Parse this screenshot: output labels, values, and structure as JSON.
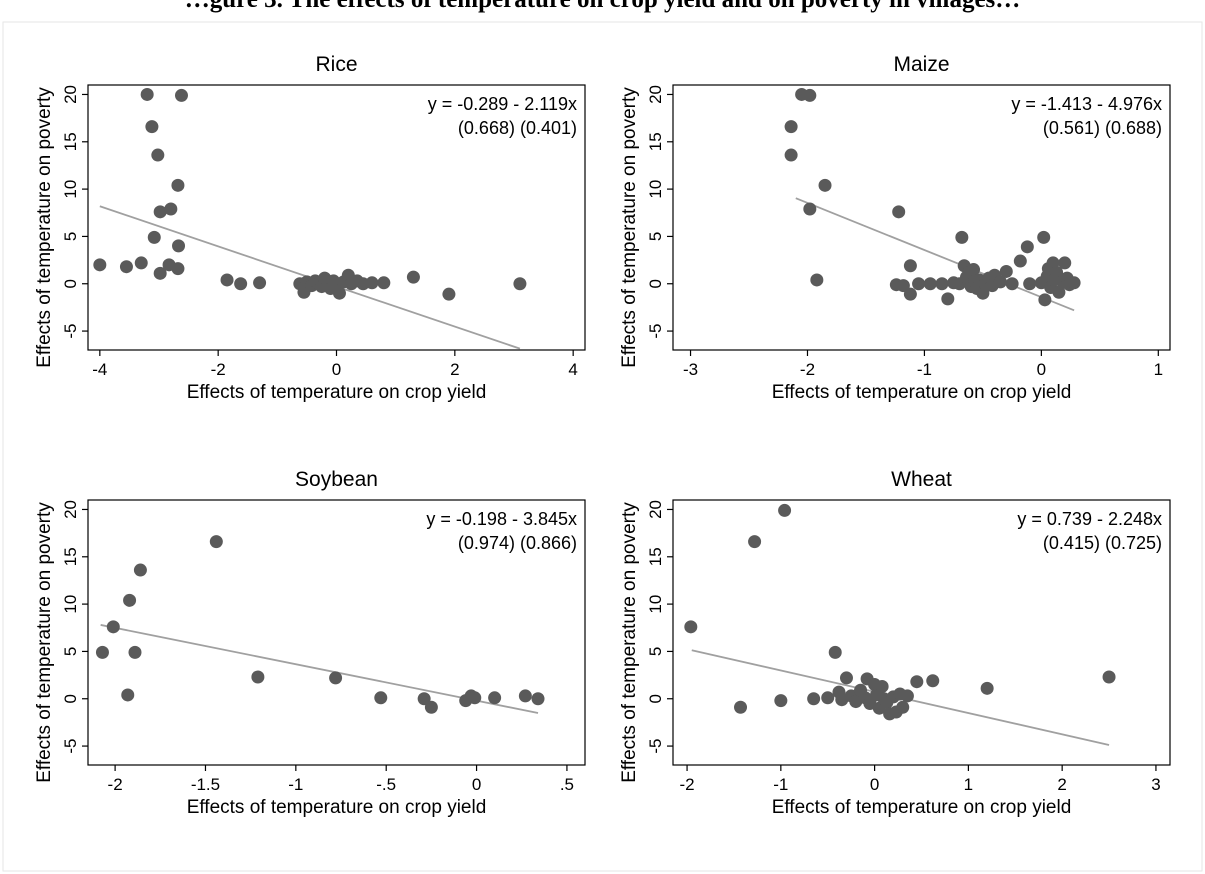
{
  "page": {
    "title": "…gure 3. The effects of temperature on crop yield and on poverty in villages…"
  },
  "colors": {
    "point": "#5a5a5a",
    "fit_line": "#a0a0a0",
    "axis": "#000000",
    "background": "#ffffff"
  },
  "chart_data": [
    {
      "type": "scatter",
      "title": "Rice",
      "xlabel": "Effects of temperature on crop yield",
      "ylabel": "Effects of temperature on poverty",
      "xlim": [
        -4.2,
        4.2
      ],
      "ylim": [
        -7,
        21
      ],
      "xticks": [
        -4,
        -2,
        0,
        2,
        4
      ],
      "xtick_labels": [
        "-4",
        "-2",
        "0",
        "2",
        "4"
      ],
      "yticks": [
        -5,
        0,
        5,
        10,
        15,
        20
      ],
      "ytick_labels": [
        "-5",
        "0",
        "5",
        "10",
        "15",
        "20"
      ],
      "equation": "y = -0.289 - 2.119x",
      "std_errors": "(0.668) (0.401)",
      "fit": {
        "intercept": -0.289,
        "slope": -2.119,
        "x_range": [
          -4.0,
          3.1
        ]
      },
      "points": [
        {
          "x": -4.0,
          "y": 2.0
        },
        {
          "x": -3.55,
          "y": 1.8
        },
        {
          "x": -3.3,
          "y": 2.2
        },
        {
          "x": -3.2,
          "y": 20.0
        },
        {
          "x": -3.12,
          "y": 16.6
        },
        {
          "x": -3.08,
          "y": 4.9
        },
        {
          "x": -3.02,
          "y": 13.6
        },
        {
          "x": -2.98,
          "y": 7.6
        },
        {
          "x": -2.98,
          "y": 1.1
        },
        {
          "x": -2.83,
          "y": 2.0
        },
        {
          "x": -2.8,
          "y": 7.9
        },
        {
          "x": -2.68,
          "y": 10.4
        },
        {
          "x": -2.67,
          "y": 4.0
        },
        {
          "x": -2.62,
          "y": 19.9
        },
        {
          "x": -2.68,
          "y": 1.6
        },
        {
          "x": -1.85,
          "y": 0.4
        },
        {
          "x": -1.62,
          "y": 0.0
        },
        {
          "x": -1.3,
          "y": 0.1
        },
        {
          "x": -0.62,
          "y": 0.0
        },
        {
          "x": -0.55,
          "y": -0.9
        },
        {
          "x": -0.5,
          "y": 0.2
        },
        {
          "x": -0.42,
          "y": -0.2
        },
        {
          "x": -0.36,
          "y": 0.3
        },
        {
          "x": -0.3,
          "y": 0.0
        },
        {
          "x": -0.25,
          "y": -0.3
        },
        {
          "x": -0.2,
          "y": 0.6
        },
        {
          "x": -0.15,
          "y": 0.2
        },
        {
          "x": -0.1,
          "y": -0.5
        },
        {
          "x": -0.05,
          "y": 0.3
        },
        {
          "x": 0.0,
          "y": -0.1
        },
        {
          "x": 0.05,
          "y": -1.0
        },
        {
          "x": 0.12,
          "y": 0.2
        },
        {
          "x": 0.2,
          "y": 0.9
        },
        {
          "x": 0.25,
          "y": 0.0
        },
        {
          "x": 0.35,
          "y": 0.3
        },
        {
          "x": 0.45,
          "y": 0.0
        },
        {
          "x": 0.6,
          "y": 0.1
        },
        {
          "x": 0.8,
          "y": 0.1
        },
        {
          "x": 1.3,
          "y": 0.7
        },
        {
          "x": 1.9,
          "y": -1.1
        },
        {
          "x": 3.1,
          "y": 0.0
        }
      ]
    },
    {
      "type": "scatter",
      "title": "Maize",
      "xlabel": "Effects of temperature on crop yield",
      "ylabel": "Effects of temperature on poverty",
      "xlim": [
        -3.15,
        1.1
      ],
      "ylim": [
        -7,
        21
      ],
      "xticks": [
        -3,
        -2,
        -1,
        0,
        1
      ],
      "xtick_labels": [
        "-3",
        "-2",
        "-1",
        "0",
        "1"
      ],
      "yticks": [
        -5,
        0,
        5,
        10,
        15,
        20
      ],
      "ytick_labels": [
        "-5",
        "0",
        "5",
        "10",
        "15",
        "20"
      ],
      "equation": "y = -1.413 - 4.976x",
      "std_errors": "(0.561) (0.688)",
      "fit": {
        "intercept": -1.413,
        "slope": -4.976,
        "x_range": [
          -2.1,
          0.28
        ]
      },
      "points": [
        {
          "x": -2.14,
          "y": 16.6
        },
        {
          "x": -2.14,
          "y": 13.6
        },
        {
          "x": -2.05,
          "y": 20.0
        },
        {
          "x": -1.98,
          "y": 19.9
        },
        {
          "x": -1.98,
          "y": 7.9
        },
        {
          "x": -1.92,
          "y": 0.4
        },
        {
          "x": -1.85,
          "y": 10.4
        },
        {
          "x": -1.22,
          "y": 7.6
        },
        {
          "x": -1.24,
          "y": -0.1
        },
        {
          "x": -1.18,
          "y": -0.2
        },
        {
          "x": -1.12,
          "y": 1.9
        },
        {
          "x": -1.12,
          "y": -1.1
        },
        {
          "x": -1.05,
          "y": 0.0
        },
        {
          "x": -0.95,
          "y": 0.0
        },
        {
          "x": -0.85,
          "y": 0.0
        },
        {
          "x": -0.8,
          "y": -1.6
        },
        {
          "x": -0.75,
          "y": 0.1
        },
        {
          "x": -0.7,
          "y": 0.0
        },
        {
          "x": -0.68,
          "y": 4.9
        },
        {
          "x": -0.66,
          "y": 1.9
        },
        {
          "x": -0.64,
          "y": 0.7
        },
        {
          "x": -0.62,
          "y": 1.2
        },
        {
          "x": -0.6,
          "y": -0.3
        },
        {
          "x": -0.58,
          "y": 1.5
        },
        {
          "x": -0.57,
          "y": 0.3
        },
        {
          "x": -0.55,
          "y": -0.5
        },
        {
          "x": -0.53,
          "y": 0.4
        },
        {
          "x": -0.5,
          "y": -1.0
        },
        {
          "x": -0.48,
          "y": 0.0
        },
        {
          "x": -0.45,
          "y": 0.6
        },
        {
          "x": -0.42,
          "y": -0.2
        },
        {
          "x": -0.4,
          "y": 0.9
        },
        {
          "x": -0.35,
          "y": 0.2
        },
        {
          "x": -0.3,
          "y": 1.3
        },
        {
          "x": -0.25,
          "y": 0.0
        },
        {
          "x": -0.18,
          "y": 2.4
        },
        {
          "x": -0.12,
          "y": 3.9
        },
        {
          "x": -0.1,
          "y": 0.0
        },
        {
          "x": 0.0,
          "y": 0.1
        },
        {
          "x": 0.02,
          "y": 4.9
        },
        {
          "x": 0.03,
          "y": -1.7
        },
        {
          "x": 0.05,
          "y": 0.8
        },
        {
          "x": 0.06,
          "y": 1.6
        },
        {
          "x": 0.08,
          "y": -0.4
        },
        {
          "x": 0.1,
          "y": 2.2
        },
        {
          "x": 0.11,
          "y": 0.4
        },
        {
          "x": 0.13,
          "y": 1.2
        },
        {
          "x": 0.15,
          "y": -0.9
        },
        {
          "x": 0.18,
          "y": 0.2
        },
        {
          "x": 0.2,
          "y": 2.2
        },
        {
          "x": 0.22,
          "y": 0.6
        },
        {
          "x": 0.24,
          "y": -0.1
        },
        {
          "x": 0.28,
          "y": 0.1
        }
      ]
    },
    {
      "type": "scatter",
      "title": "Soybean",
      "xlabel": "Effects of temperature on crop yield",
      "ylabel": "Effects of temperature on poverty",
      "xlim": [
        -2.15,
        0.6
      ],
      "ylim": [
        -7,
        21
      ],
      "xticks": [
        -2,
        -1.5,
        -1,
        -0.5,
        0,
        0.5
      ],
      "xtick_labels": [
        "-2",
        "-1.5",
        "-1",
        "-.5",
        "0",
        ".5"
      ],
      "yticks": [
        -5,
        0,
        5,
        10,
        15,
        20
      ],
      "ytick_labels": [
        "-5",
        "0",
        "5",
        "10",
        "15",
        "20"
      ],
      "equation": "y = -0.198 - 3.845x",
      "std_errors": "(0.974) (0.866)",
      "fit": {
        "intercept": -0.198,
        "slope": -3.845,
        "x_range": [
          -2.08,
          0.34
        ]
      },
      "points": [
        {
          "x": -2.07,
          "y": 4.9
        },
        {
          "x": -2.01,
          "y": 7.6
        },
        {
          "x": -1.93,
          "y": 0.4
        },
        {
          "x": -1.92,
          "y": 10.4
        },
        {
          "x": -1.89,
          "y": 4.9
        },
        {
          "x": -1.86,
          "y": 13.6
        },
        {
          "x": -1.44,
          "y": 16.6
        },
        {
          "x": -1.21,
          "y": 2.3
        },
        {
          "x": -0.78,
          "y": 2.2
        },
        {
          "x": -0.53,
          "y": 0.1
        },
        {
          "x": -0.29,
          "y": 0.0
        },
        {
          "x": -0.25,
          "y": -0.9
        },
        {
          "x": -0.06,
          "y": -0.2
        },
        {
          "x": -0.03,
          "y": 0.3
        },
        {
          "x": -0.01,
          "y": 0.1
        },
        {
          "x": 0.1,
          "y": 0.1
        },
        {
          "x": 0.27,
          "y": 0.3
        },
        {
          "x": 0.34,
          "y": 0.0
        }
      ]
    },
    {
      "type": "scatter",
      "title": "Wheat",
      "xlabel": "Effects of temperature on crop yield",
      "ylabel": "Effects of temperature on poverty",
      "xlim": [
        -2.15,
        3.15
      ],
      "ylim": [
        -7,
        21
      ],
      "xticks": [
        -2,
        -1,
        0,
        1,
        2,
        3
      ],
      "xtick_labels": [
        "-2",
        "-1",
        "0",
        "1",
        "2",
        "3"
      ],
      "yticks": [
        -5,
        0,
        5,
        10,
        15,
        20
      ],
      "ytick_labels": [
        "-5",
        "0",
        "5",
        "10",
        "15",
        "20"
      ],
      "equation": "y = 0.739 - 2.248x",
      "std_errors": "(0.415) (0.725)",
      "fit": {
        "intercept": 0.739,
        "slope": -2.248,
        "x_range": [
          -1.95,
          2.5
        ]
      },
      "points": [
        {
          "x": -1.96,
          "y": 7.6
        },
        {
          "x": -1.43,
          "y": -0.9
        },
        {
          "x": -1.28,
          "y": 16.6
        },
        {
          "x": -1.0,
          "y": -0.2
        },
        {
          "x": -0.96,
          "y": 19.9
        },
        {
          "x": -0.65,
          "y": 0.0
        },
        {
          "x": -0.5,
          "y": 0.1
        },
        {
          "x": -0.42,
          "y": 4.9
        },
        {
          "x": -0.38,
          "y": 0.7
        },
        {
          "x": -0.35,
          "y": -0.1
        },
        {
          "x": -0.3,
          "y": 2.2
        },
        {
          "x": -0.25,
          "y": 0.3
        },
        {
          "x": -0.2,
          "y": -0.3
        },
        {
          "x": -0.15,
          "y": 0.9
        },
        {
          "x": -0.1,
          "y": 0.1
        },
        {
          "x": -0.08,
          "y": 2.1
        },
        {
          "x": -0.05,
          "y": -0.5
        },
        {
          "x": 0.0,
          "y": 1.5
        },
        {
          "x": 0.02,
          "y": 0.4
        },
        {
          "x": 0.05,
          "y": -1.0
        },
        {
          "x": 0.08,
          "y": 1.3
        },
        {
          "x": 0.1,
          "y": 0.0
        },
        {
          "x": 0.13,
          "y": -0.4
        },
        {
          "x": 0.16,
          "y": -1.6
        },
        {
          "x": 0.2,
          "y": 0.2
        },
        {
          "x": 0.23,
          "y": -1.4
        },
        {
          "x": 0.27,
          "y": 0.5
        },
        {
          "x": 0.3,
          "y": -0.9
        },
        {
          "x": 0.35,
          "y": 0.3
        },
        {
          "x": 0.45,
          "y": 1.8
        },
        {
          "x": 0.62,
          "y": 1.9
        },
        {
          "x": 1.2,
          "y": 1.1
        },
        {
          "x": 2.5,
          "y": 2.3
        }
      ]
    }
  ]
}
